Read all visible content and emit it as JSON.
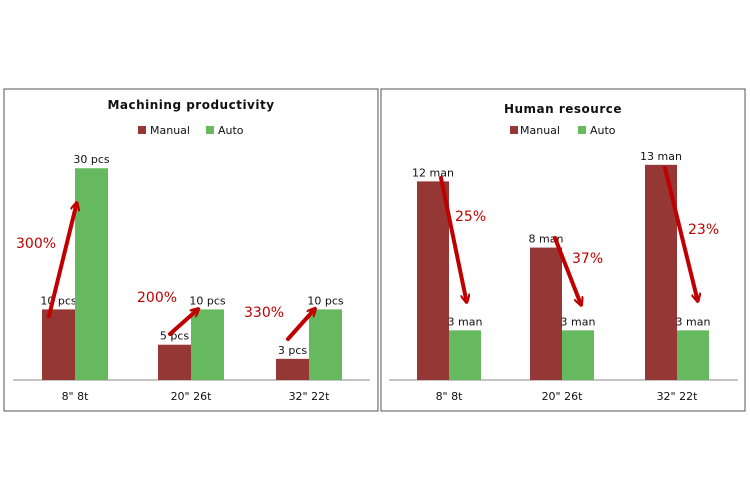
{
  "chart_data": [
    {
      "type": "bar",
      "title": "Machining productivity",
      "categories": [
        "8\" 8t",
        "20\" 26t",
        "32\" 22t"
      ],
      "series": [
        {
          "name": "Manual",
          "values": [
            10,
            5,
            3
          ],
          "color": "#953735",
          "labels": [
            "10 pcs",
            "5 pcs",
            "3 pcs"
          ]
        },
        {
          "name": "Auto",
          "values": [
            30,
            10,
            10
          ],
          "color": "#66b95f",
          "labels": [
            "30 pcs",
            "10 pcs",
            "10 pcs"
          ]
        }
      ],
      "ylim": [
        0,
        34
      ],
      "legend": "top",
      "grid": false,
      "annotations": [
        {
          "category": 0,
          "text": "300%",
          "direction": "up",
          "color": "#c00000"
        },
        {
          "category": 1,
          "text": "200%",
          "direction": "up",
          "color": "#c00000"
        },
        {
          "category": 2,
          "text": "330%",
          "direction": "up",
          "color": "#c00000"
        }
      ]
    },
    {
      "type": "bar",
      "title": "Human resource",
      "categories": [
        "8\" 8t",
        "20\" 26t",
        "32\" 22t"
      ],
      "series": [
        {
          "name": "Manual",
          "values": [
            12,
            8,
            13
          ],
          "color": "#953735",
          "labels": [
            "12 man",
            "8 man",
            "13 man"
          ]
        },
        {
          "name": "Auto",
          "values": [
            3,
            3,
            3
          ],
          "color": "#66b95f",
          "labels": [
            "3 man",
            "3 man",
            "3 man"
          ]
        }
      ],
      "ylim": [
        0,
        14.5
      ],
      "legend": "top",
      "grid": false,
      "annotations": [
        {
          "category": 0,
          "text": "25%",
          "direction": "down",
          "color": "#c00000"
        },
        {
          "category": 1,
          "text": "37%",
          "direction": "down",
          "color": "#c00000"
        },
        {
          "category": 2,
          "text": "23%",
          "direction": "down",
          "color": "#c00000"
        }
      ]
    }
  ]
}
